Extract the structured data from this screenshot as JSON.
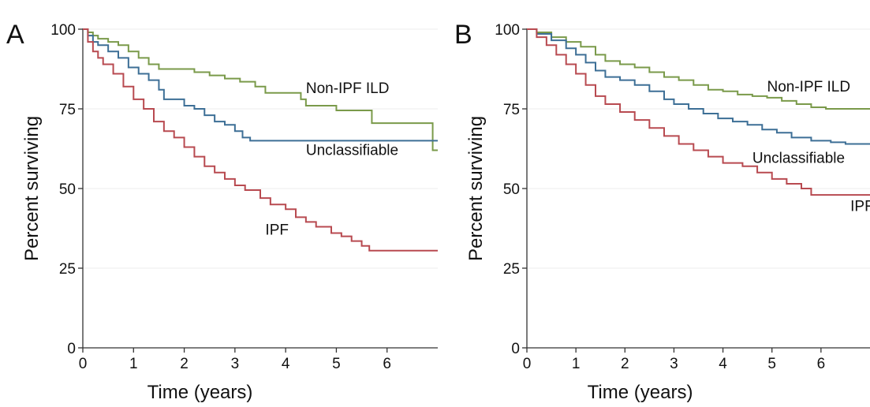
{
  "chart_data": [
    {
      "panel_label": "A",
      "type": "line",
      "step": true,
      "xlabel": "Time (years)",
      "ylabel": "Percent surviving",
      "xlim": [
        0,
        7.0
      ],
      "ylim": [
        0,
        100
      ],
      "xticks": [
        0,
        1,
        2,
        3,
        4,
        5,
        6
      ],
      "yticks": [
        0,
        25,
        50,
        75,
        100
      ],
      "grid": "horizontal",
      "series": [
        {
          "name": "Non-IPF ILD",
          "color": "#7a9a4a",
          "label_at": [
            4.4,
            80
          ],
          "points": [
            [
              0,
              100
            ],
            [
              0.1,
              99
            ],
            [
              0.2,
              98
            ],
            [
              0.3,
              97
            ],
            [
              0.5,
              96
            ],
            [
              0.7,
              95
            ],
            [
              0.9,
              93
            ],
            [
              1.1,
              91
            ],
            [
              1.3,
              89
            ],
            [
              1.5,
              87.5
            ],
            [
              2.0,
              87.5
            ],
            [
              2.2,
              86.5
            ],
            [
              2.5,
              85.5
            ],
            [
              2.8,
              84.5
            ],
            [
              3.1,
              83.5
            ],
            [
              3.4,
              82
            ],
            [
              3.6,
              80
            ],
            [
              4.2,
              80
            ],
            [
              4.3,
              78
            ],
            [
              4.4,
              76
            ],
            [
              4.9,
              76
            ],
            [
              5.0,
              74.5
            ],
            [
              5.6,
              74.5
            ],
            [
              5.7,
              70.5
            ],
            [
              6.85,
              70.5
            ],
            [
              6.9,
              62
            ],
            [
              7.0,
              62
            ]
          ]
        },
        {
          "name": "Unclassifiable",
          "color": "#3d6f96",
          "label_at": [
            4.4,
            60.5
          ],
          "points": [
            [
              0,
              100
            ],
            [
              0.1,
              98
            ],
            [
              0.2,
              96
            ],
            [
              0.3,
              95
            ],
            [
              0.5,
              93
            ],
            [
              0.7,
              91
            ],
            [
              0.9,
              88
            ],
            [
              1.1,
              86
            ],
            [
              1.3,
              84
            ],
            [
              1.5,
              81
            ],
            [
              1.6,
              78
            ],
            [
              1.9,
              78
            ],
            [
              2.0,
              76
            ],
            [
              2.2,
              75
            ],
            [
              2.4,
              73
            ],
            [
              2.6,
              71
            ],
            [
              2.8,
              70
            ],
            [
              3.0,
              68
            ],
            [
              3.15,
              66
            ],
            [
              3.3,
              65
            ],
            [
              7.0,
              65
            ]
          ]
        },
        {
          "name": "IPF",
          "color": "#b84a50",
          "label_at": [
            3.6,
            35.5
          ],
          "points": [
            [
              0,
              100
            ],
            [
              0.1,
              96
            ],
            [
              0.2,
              93
            ],
            [
              0.3,
              91
            ],
            [
              0.4,
              89
            ],
            [
              0.6,
              86
            ],
            [
              0.8,
              82
            ],
            [
              1.0,
              78
            ],
            [
              1.2,
              75
            ],
            [
              1.4,
              71
            ],
            [
              1.6,
              68
            ],
            [
              1.8,
              66
            ],
            [
              2.0,
              63
            ],
            [
              2.2,
              60
            ],
            [
              2.4,
              57
            ],
            [
              2.6,
              55
            ],
            [
              2.8,
              53
            ],
            [
              3.0,
              51
            ],
            [
              3.2,
              49.5
            ],
            [
              3.5,
              47
            ],
            [
              3.7,
              45
            ],
            [
              4.0,
              43.5
            ],
            [
              4.2,
              41
            ],
            [
              4.4,
              39.5
            ],
            [
              4.6,
              38
            ],
            [
              4.9,
              36
            ],
            [
              5.1,
              35
            ],
            [
              5.3,
              33.5
            ],
            [
              5.5,
              32
            ],
            [
              5.65,
              30.5
            ],
            [
              7.0,
              30.5
            ]
          ]
        }
      ]
    },
    {
      "panel_label": "B",
      "type": "line",
      "step": true,
      "xlabel": "Time (years)",
      "ylabel": "Percent surviving",
      "xlim": [
        0,
        7.0
      ],
      "ylim": [
        0,
        100
      ],
      "xticks": [
        0,
        1,
        2,
        3,
        4,
        5,
        6
      ],
      "yticks": [
        0,
        25,
        50,
        75,
        100
      ],
      "grid": "horizontal",
      "series": [
        {
          "name": "Non-IPF ILD",
          "color": "#7a9a4a",
          "label_at": [
            4.9,
            80.5
          ],
          "points": [
            [
              0,
              100
            ],
            [
              0.2,
              99
            ],
            [
              0.5,
              97.5
            ],
            [
              0.8,
              96
            ],
            [
              1.1,
              94.5
            ],
            [
              1.4,
              92
            ],
            [
              1.6,
              90
            ],
            [
              1.9,
              89
            ],
            [
              2.2,
              88
            ],
            [
              2.5,
              86.5
            ],
            [
              2.8,
              85
            ],
            [
              3.1,
              84
            ],
            [
              3.4,
              82.5
            ],
            [
              3.7,
              81
            ],
            [
              4.0,
              80.5
            ],
            [
              4.3,
              79.5
            ],
            [
              4.6,
              79
            ],
            [
              4.9,
              78.5
            ],
            [
              5.2,
              77.5
            ],
            [
              5.5,
              76.5
            ],
            [
              5.8,
              75.5
            ],
            [
              6.1,
              75
            ],
            [
              7.0,
              75
            ]
          ]
        },
        {
          "name": "Unclassifiable",
          "color": "#3d6f96",
          "label_at": [
            4.6,
            58
          ],
          "points": [
            [
              0,
              100
            ],
            [
              0.2,
              98.5
            ],
            [
              0.5,
              96.5
            ],
            [
              0.8,
              94
            ],
            [
              1.0,
              92
            ],
            [
              1.2,
              89.5
            ],
            [
              1.4,
              87
            ],
            [
              1.6,
              85
            ],
            [
              1.9,
              84
            ],
            [
              2.2,
              82.5
            ],
            [
              2.5,
              80.5
            ],
            [
              2.8,
              78
            ],
            [
              3.0,
              76.5
            ],
            [
              3.3,
              75
            ],
            [
              3.6,
              73.5
            ],
            [
              3.9,
              72
            ],
            [
              4.2,
              71
            ],
            [
              4.5,
              70
            ],
            [
              4.8,
              68.5
            ],
            [
              5.1,
              67.5
            ],
            [
              5.4,
              66
            ],
            [
              5.8,
              65
            ],
            [
              6.2,
              64.5
            ],
            [
              6.5,
              64
            ],
            [
              7.0,
              64
            ]
          ]
        },
        {
          "name": "IPF",
          "color": "#b84a50",
          "label_at": [
            6.6,
            43
          ],
          "points": [
            [
              0,
              100
            ],
            [
              0.2,
              97.5
            ],
            [
              0.4,
              95
            ],
            [
              0.6,
              92
            ],
            [
              0.8,
              89
            ],
            [
              1.0,
              86
            ],
            [
              1.2,
              82.5
            ],
            [
              1.4,
              79
            ],
            [
              1.6,
              76.5
            ],
            [
              1.9,
              74
            ],
            [
              2.2,
              71.5
            ],
            [
              2.5,
              69
            ],
            [
              2.8,
              66.5
            ],
            [
              3.1,
              64
            ],
            [
              3.4,
              62
            ],
            [
              3.7,
              60
            ],
            [
              4.0,
              58
            ],
            [
              4.4,
              57
            ],
            [
              4.7,
              55
            ],
            [
              5.0,
              53
            ],
            [
              5.3,
              51.5
            ],
            [
              5.6,
              50
            ],
            [
              5.8,
              48
            ],
            [
              7.0,
              48
            ]
          ]
        }
      ]
    }
  ]
}
